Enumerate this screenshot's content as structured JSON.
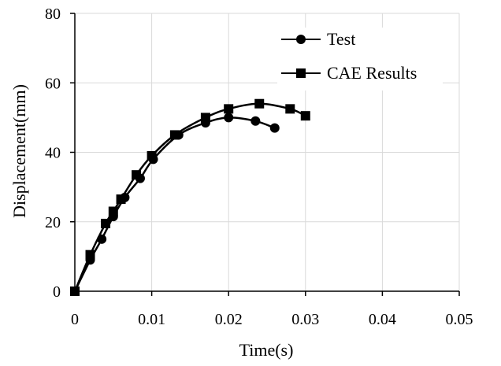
{
  "chart_data": {
    "type": "line",
    "xlabel": "Time(s)",
    "ylabel": "Displacement(mm)",
    "xlim": [
      0,
      0.05
    ],
    "ylim": [
      0,
      80
    ],
    "x_ticks": [
      "0",
      "0.01",
      "0.02",
      "0.03",
      "0.04",
      "0.05"
    ],
    "y_ticks": [
      "0",
      "20",
      "40",
      "60",
      "80"
    ],
    "grid": true,
    "legend_position": "top-right",
    "series": [
      {
        "name": "Test",
        "marker": "circle",
        "color": "#000000",
        "x": [
          0,
          0.002,
          0.0035,
          0.005,
          0.0065,
          0.0085,
          0.0102,
          0.0135,
          0.017,
          0.02,
          0.0235,
          0.026
        ],
        "y": [
          0,
          9,
          15,
          21.5,
          27,
          32.5,
          38,
          45,
          48.5,
          50,
          49,
          47
        ]
      },
      {
        "name": "CAE Results",
        "marker": "square",
        "color": "#000000",
        "x": [
          0,
          0.002,
          0.004,
          0.005,
          0.006,
          0.008,
          0.01,
          0.013,
          0.017,
          0.02,
          0.024,
          0.028,
          0.03
        ],
        "y": [
          0,
          10.5,
          19.5,
          23,
          26.5,
          33.5,
          39,
          45,
          50,
          52.5,
          54,
          52.5,
          50.5
        ]
      }
    ]
  }
}
